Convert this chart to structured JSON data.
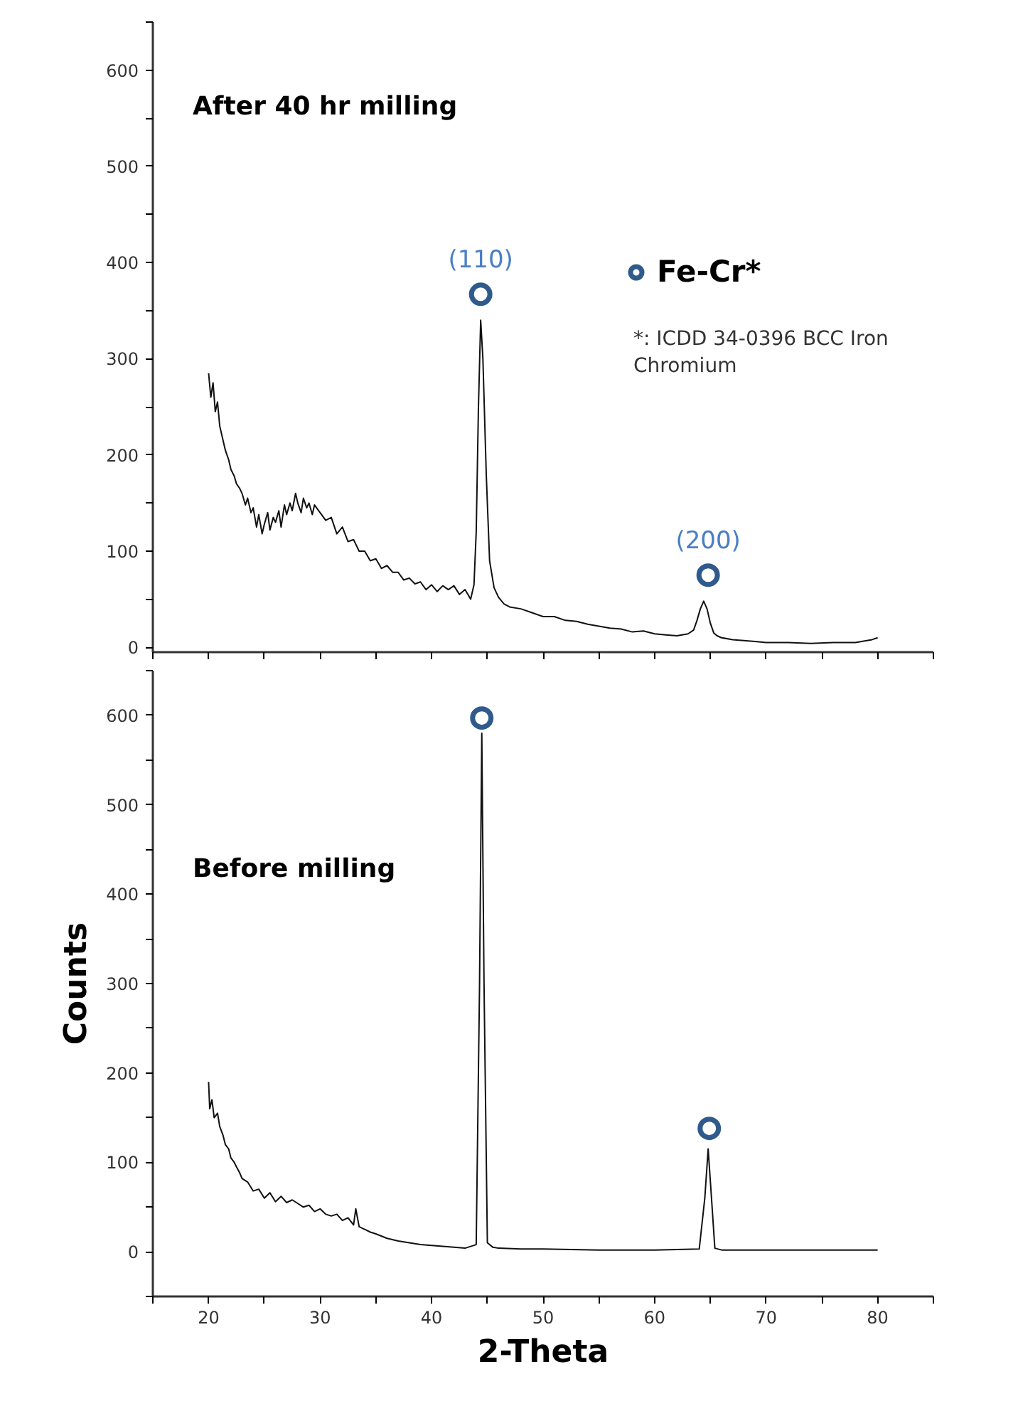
{
  "chart_data": [
    {
      "type": "line",
      "annotations": [
        "After 40 hr milling",
        {
          "text": "(110)",
          "x": 44.4,
          "y": 367
        },
        {
          "text": "(200)",
          "x": 64.8,
          "y": 75
        },
        "*: ICDD 34-0396 BCC Iron Chromium"
      ],
      "xlim": [
        15,
        85
      ],
      "xticks": [
        {
          "value": 15,
          "label": null
        },
        20,
        {
          "value": 25,
          "label": null
        },
        30,
        {
          "value": 35,
          "label": null
        },
        40,
        {
          "value": 45,
          "label": null
        },
        50,
        {
          "value": 55,
          "label": null
        },
        60,
        {
          "value": 65,
          "label": null
        },
        70,
        {
          "value": 75,
          "label": null
        },
        80,
        {
          "value": 85,
          "label": null
        }
      ],
      "ylim": [
        -5,
        650
      ],
      "yticks": [
        0,
        {
          "value": 50,
          "label": null
        },
        100,
        {
          "value": 150,
          "label": null
        },
        200,
        {
          "value": 250,
          "label": null
        },
        300,
        {
          "value": 350,
          "label": null
        },
        400,
        {
          "value": 450,
          "label": null
        },
        500,
        {
          "value": 550,
          "label": null
        },
        600,
        {
          "value": 650,
          "label": null
        }
      ],
      "tick_labels": "y",
      "grid": false,
      "legend": "top right",
      "series": [
        {
          "color": "#111111",
          "marker": "none",
          "line_style": "solid",
          "x": [
            20,
            20.2,
            20.4,
            20.6,
            20.8,
            21,
            21.3,
            21.5,
            21.8,
            22,
            22.3,
            22.5,
            22.8,
            23,
            23.3,
            23.5,
            23.8,
            24,
            24.3,
            24.5,
            24.8,
            25,
            25.3,
            25.5,
            25.8,
            26,
            26.3,
            26.5,
            26.8,
            27,
            27.3,
            27.5,
            27.8,
            28,
            28.3,
            28.5,
            28.8,
            29,
            29.3,
            29.5,
            30,
            30.5,
            31,
            31.5,
            32,
            32.5,
            33,
            33.5,
            34,
            34.5,
            35,
            35.5,
            36,
            36.5,
            37,
            37.5,
            38,
            38.5,
            39,
            39.5,
            40,
            40.5,
            41,
            41.5,
            42,
            42.5,
            43,
            43.5,
            43.8,
            44,
            44.2,
            44.4,
            44.6,
            44.9,
            45.2,
            45.6,
            46,
            46.5,
            47,
            48,
            49,
            50,
            51,
            52,
            53,
            54,
            55,
            56,
            57,
            58,
            59,
            60,
            61,
            62,
            63,
            63.5,
            63.8,
            64.1,
            64.4,
            64.7,
            65,
            65.3,
            65.6,
            66,
            67,
            68,
            69,
            70,
            72,
            74,
            76,
            78,
            79.5,
            80
          ],
          "values": [
            285,
            260,
            275,
            245,
            255,
            230,
            215,
            205,
            195,
            185,
            178,
            170,
            165,
            160,
            148,
            155,
            140,
            145,
            125,
            138,
            118,
            128,
            140,
            122,
            135,
            130,
            142,
            125,
            148,
            138,
            150,
            142,
            160,
            150,
            140,
            155,
            145,
            150,
            138,
            148,
            140,
            132,
            135,
            118,
            125,
            110,
            112,
            100,
            100,
            90,
            92,
            82,
            85,
            78,
            78,
            70,
            72,
            66,
            68,
            60,
            65,
            58,
            64,
            60,
            64,
            55,
            60,
            50,
            65,
            120,
            250,
            340,
            300,
            180,
            90,
            62,
            52,
            45,
            42,
            40,
            36,
            32,
            32,
            28,
            27,
            24,
            22,
            20,
            19,
            16,
            17,
            14,
            13,
            12,
            14,
            18,
            28,
            40,
            48,
            40,
            25,
            15,
            12,
            10,
            8,
            7,
            6,
            5,
            5,
            4,
            5,
            5,
            8,
            10
          ]
        },
        {
          "type": "scatter",
          "name": "Fe-Cr*",
          "color": "#2f5b8c",
          "marker": "circle",
          "x": [
            44.4,
            64.8
          ],
          "values": [
            367,
            75
          ]
        }
      ]
    },
    {
      "type": "line",
      "annotations": [
        "Before milling"
      ],
      "xlabel": "2-Theta",
      "ylabel": "Counts",
      "xlim": [
        15,
        85
      ],
      "xticks": [
        {
          "value": 15,
          "label": null
        },
        20,
        {
          "value": 25,
          "label": null
        },
        30,
        {
          "value": 35,
          "label": null
        },
        40,
        {
          "value": 45,
          "label": null
        },
        50,
        {
          "value": 55,
          "label": null
        },
        60,
        {
          "value": 65,
          "label": null
        },
        70,
        {
          "value": 75,
          "label": null
        },
        80,
        {
          "value": 85,
          "label": null
        }
      ],
      "ylim": [
        -50,
        650
      ],
      "yticks": [
        {
          "value": -50,
          "label": null
        },
        0,
        {
          "value": 50,
          "label": null
        },
        100,
        {
          "value": 150,
          "label": null
        },
        200,
        {
          "value": 250,
          "label": null
        },
        300,
        {
          "value": 350,
          "label": null
        },
        400,
        {
          "value": 450,
          "label": null
        },
        500,
        {
          "value": 550,
          "label": null
        },
        600,
        {
          "value": 650,
          "label": null
        }
      ],
      "grid": false,
      "series": [
        {
          "color": "#111111",
          "marker": "none",
          "line_style": "solid",
          "x": [
            20,
            20.1,
            20.3,
            20.5,
            20.8,
            21,
            21.3,
            21.5,
            21.8,
            22,
            22.3,
            22.5,
            22.8,
            23,
            23.5,
            24,
            24.5,
            25,
            25.5,
            26,
            26.5,
            27,
            27.5,
            28,
            28.5,
            29,
            29.5,
            30,
            30.5,
            31,
            31.5,
            32,
            32.5,
            33,
            33.2,
            33.5,
            34,
            34.5,
            35,
            36,
            37,
            38,
            39,
            40,
            41,
            42,
            43,
            44,
            44.3,
            44.5,
            44.7,
            45,
            45.5,
            46,
            48,
            50,
            55,
            60,
            64,
            64.5,
            64.8,
            65.1,
            65.4,
            66,
            70,
            75,
            80
          ],
          "values": [
            190,
            160,
            170,
            150,
            155,
            140,
            130,
            120,
            115,
            105,
            100,
            95,
            88,
            82,
            78,
            68,
            70,
            60,
            66,
            56,
            62,
            55,
            58,
            54,
            50,
            52,
            45,
            48,
            42,
            40,
            42,
            35,
            38,
            30,
            48,
            28,
            25,
            22,
            20,
            15,
            12,
            10,
            8,
            7,
            6,
            5,
            4,
            8,
            300,
            580,
            300,
            10,
            5,
            4,
            3,
            3,
            2,
            2,
            3,
            60,
            115,
            60,
            4,
            2,
            2,
            2,
            2
          ]
        },
        {
          "type": "scatter",
          "color": "#2f5b8c",
          "marker": "circle",
          "x": [
            44.5,
            64.9
          ],
          "values": [
            597,
            138
          ]
        }
      ]
    }
  ]
}
